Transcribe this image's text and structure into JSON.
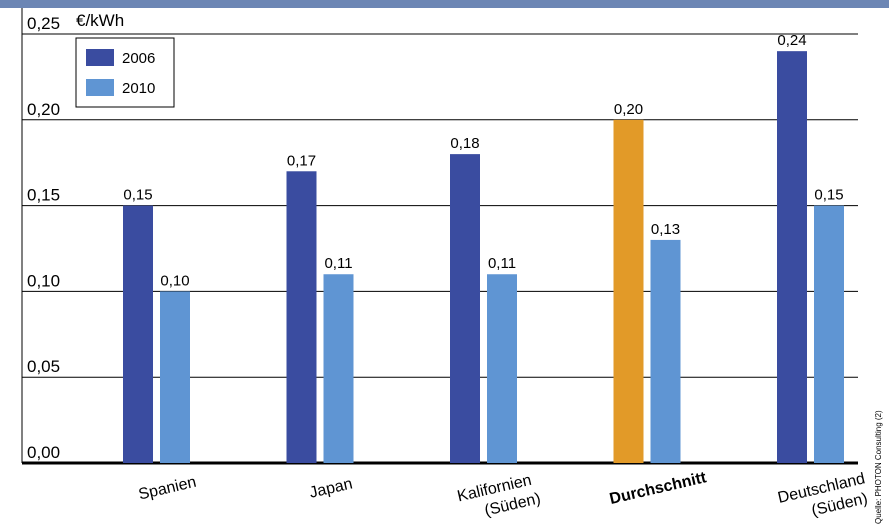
{
  "chart_data": {
    "type": "bar",
    "unit_label": "€/kWh",
    "categories": [
      {
        "lines": [
          "Spanien"
        ],
        "bold": false
      },
      {
        "lines": [
          "Japan"
        ],
        "bold": false
      },
      {
        "lines": [
          "Kalifornien",
          "(Süden)"
        ],
        "bold": false
      },
      {
        "lines": [
          "Durchschnitt"
        ],
        "bold": true
      },
      {
        "lines": [
          "Deutschland",
          "(Süden)"
        ],
        "bold": false
      }
    ],
    "series": [
      {
        "name": "2006",
        "color": "#3a4ca0",
        "values": [
          0.15,
          0.17,
          0.18,
          0.2,
          0.24
        ],
        "labels": [
          "0,15",
          "0,17",
          "0,18",
          "0,20",
          "0,24"
        ]
      },
      {
        "name": "2010",
        "color": "#5f95d3",
        "values": [
          0.1,
          0.11,
          0.11,
          0.13,
          0.15
        ],
        "labels": [
          "0,10",
          "0,11",
          "0,11",
          "0,13",
          "0,15"
        ]
      }
    ],
    "highlight": {
      "category_index": 3,
      "series_index": 0,
      "color": "#e29a28"
    },
    "yticks": [
      {
        "value": 0.0,
        "label": "0,00"
      },
      {
        "value": 0.05,
        "label": "0,05"
      },
      {
        "value": 0.1,
        "label": "0,10"
      },
      {
        "value": 0.15,
        "label": "0,15"
      },
      {
        "value": 0.2,
        "label": "0,20"
      },
      {
        "value": 0.25,
        "label": "0,25"
      }
    ],
    "ylim": [
      0,
      0.25
    ],
    "grid": true,
    "legend_position": "top-left",
    "source": "Quelle: PHOTON Consulting (2)"
  },
  "colors": {
    "header_bar": "#6c86b4",
    "grid": "#000000"
  }
}
